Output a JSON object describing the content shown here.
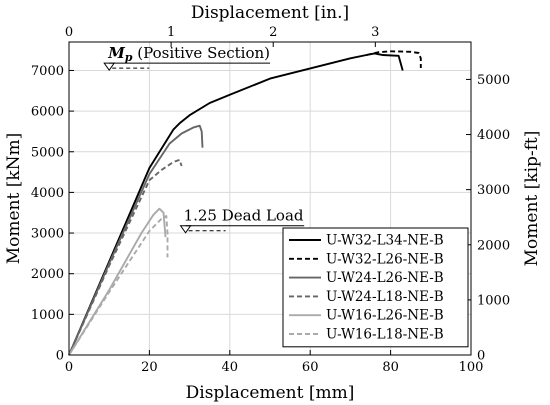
{
  "chart_data": {
    "type": "line",
    "xlabel": "Displacement [mm]",
    "x2label": "Displacement [in.]",
    "ylabel": "Moment [kNm]",
    "y2label": "Moment [kip-ft]",
    "xlim": [
      0,
      100
    ],
    "ylim": [
      0,
      7700
    ],
    "x2lim": [
      0,
      3.937
    ],
    "y2lim": [
      0,
      5679
    ],
    "x_ticks": [
      0,
      20,
      40,
      60,
      80,
      100
    ],
    "y_ticks": [
      0,
      1000,
      2000,
      3000,
      4000,
      5000,
      6000,
      7000
    ],
    "x2_ticks": [
      0,
      1,
      2,
      3
    ],
    "y2_ticks": [
      0,
      1000,
      2000,
      3000,
      4000,
      5000
    ],
    "grid": true,
    "legend_position": "bottom-right",
    "annotations": [
      {
        "id": "mp",
        "italic": "M",
        "sub": "p",
        "rest": " (Positive Section)",
        "y": 7180,
        "x_start": 10,
        "x_end": 50
      },
      {
        "id": "dead",
        "text": "1.25 Dead Load",
        "y": 3180,
        "x_start": 29,
        "x_end": 58.5
      }
    ],
    "series": [
      {
        "name": "U-W32-L34-NE-B",
        "color": "#000000",
        "dash": "solid",
        "x": [
          0,
          10,
          20,
          26,
          27.5,
          30,
          35,
          40,
          50,
          60,
          70,
          74,
          76,
          78,
          82,
          83
        ],
        "y": [
          0,
          2300,
          4600,
          5550,
          5700,
          5900,
          6200,
          6400,
          6800,
          7050,
          7300,
          7380,
          7420,
          7380,
          7360,
          7000
        ]
      },
      {
        "name": "U-W32-L26-NE-B",
        "color": "#000000",
        "dash": "dashed",
        "x": [
          74,
          77,
          80,
          85,
          87,
          87.5,
          87.5
        ],
        "y": [
          7380,
          7450,
          7470,
          7460,
          7430,
          7300,
          7060
        ]
      },
      {
        "name": "U-W24-L26-NE-B",
        "color": "#666666",
        "dash": "solid",
        "x": [
          0,
          10,
          20,
          25,
          28,
          31,
          32.5,
          33,
          33.2
        ],
        "y": [
          0,
          2250,
          4450,
          5200,
          5450,
          5600,
          5640,
          5500,
          5100
        ]
      },
      {
        "name": "U-W24-L18-NE-B",
        "color": "#666666",
        "dash": "dashed",
        "x": [
          0,
          10,
          20,
          23,
          26,
          27.5,
          28
        ],
        "y": [
          0,
          2200,
          4300,
          4550,
          4750,
          4800,
          4650
        ]
      },
      {
        "name": "U-W16-L26-NE-B",
        "color": "#aaaaaa",
        "dash": "solid",
        "x": [
          0,
          10,
          18,
          21,
          22.5,
          23.5,
          24
        ],
        "y": [
          0,
          1600,
          3000,
          3450,
          3600,
          3500,
          2900
        ]
      },
      {
        "name": "U-W16-L18-NE-B",
        "color": "#aaaaaa",
        "dash": "dashed",
        "x": [
          0,
          10,
          20,
          23,
          24.2,
          24.5,
          24.5
        ],
        "y": [
          0,
          1550,
          3050,
          3350,
          3420,
          3000,
          2400
        ]
      }
    ]
  }
}
